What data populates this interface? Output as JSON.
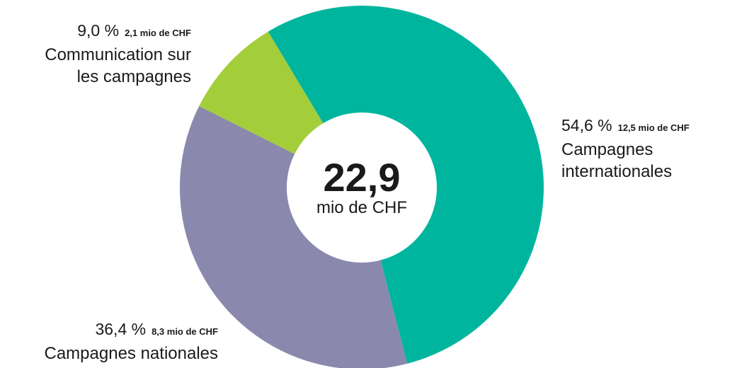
{
  "chart_data": {
    "type": "pie",
    "categories": [
      "Campagnes internationales",
      "Campagnes nationales",
      "Communication sur les campagnes"
    ],
    "values": [
      54.6,
      36.4,
      9.0
    ],
    "value_labels": [
      "54,6 %",
      "36,4 %",
      "9,0 %"
    ],
    "amount_labels": [
      "12,5 mio de CHF",
      "8,3 mio de CHF",
      "2,1 mio de CHF"
    ],
    "colors": [
      "#00b59e",
      "#8a89ad",
      "#a3cd39"
    ],
    "center_label": "22,9",
    "center_unit": "mio de CHF"
  }
}
